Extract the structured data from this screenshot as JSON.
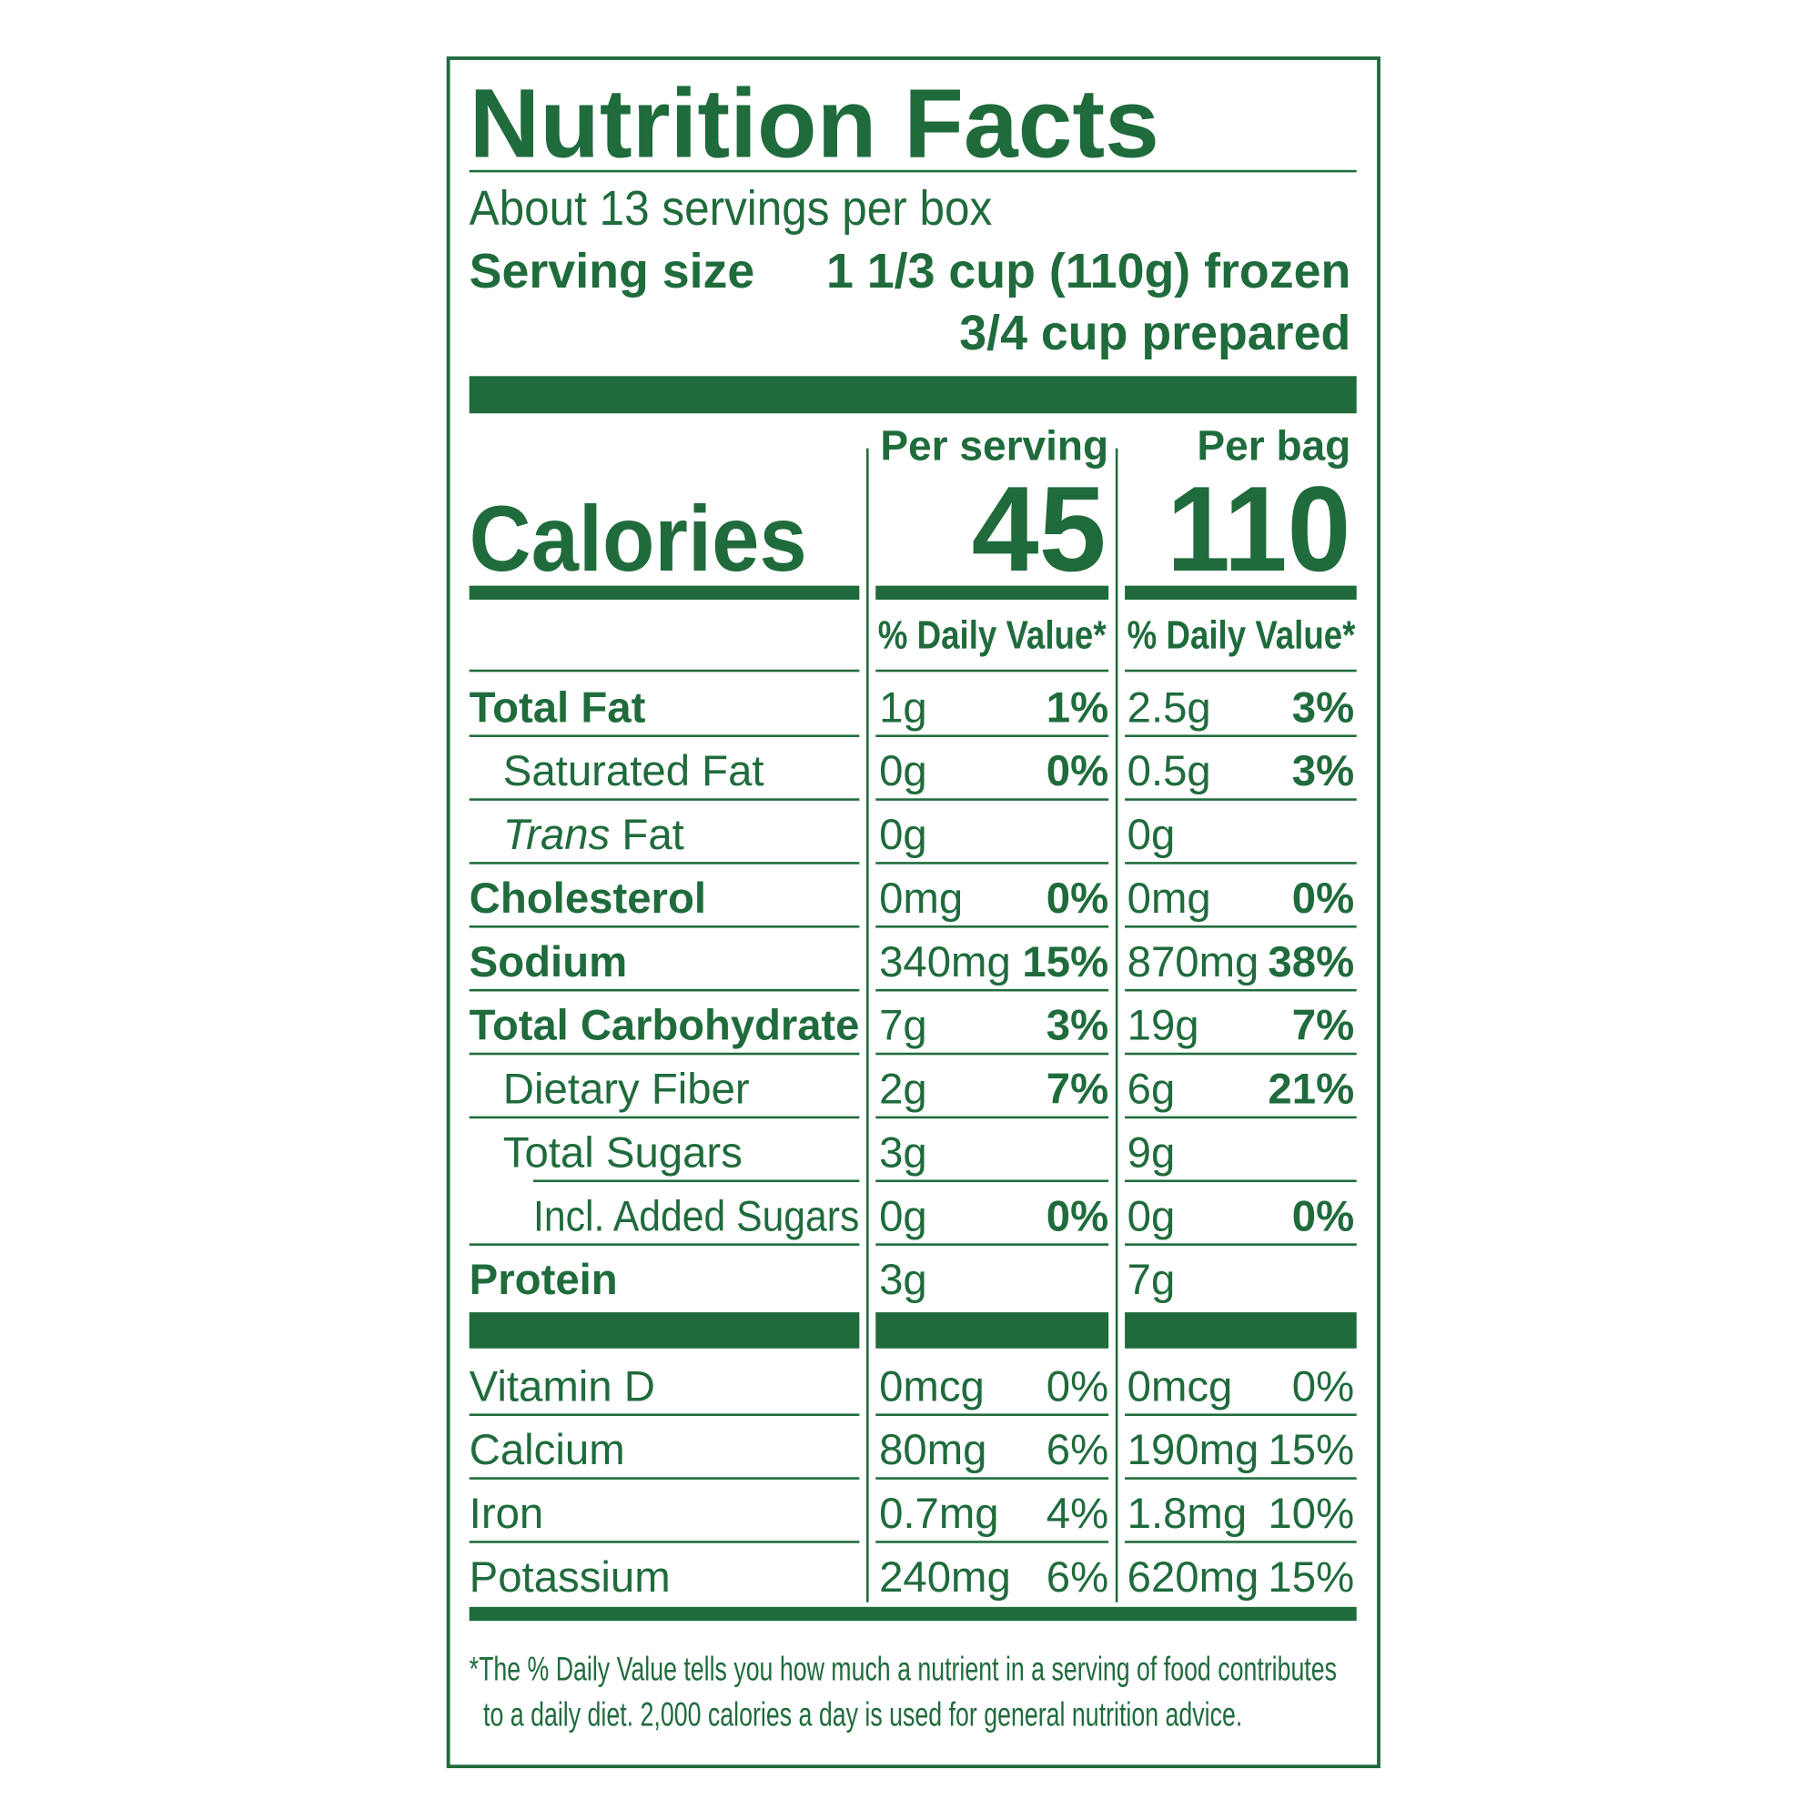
{
  "header": {
    "title": "Nutrition Facts",
    "servings": "About 13 servings per box",
    "serving_size_label": "Serving size",
    "serving_size": "1 1/3 cup (110g) frozen",
    "serving_size_prepared": "3/4 cup prepared"
  },
  "calories": {
    "label": "Calories",
    "columns": [
      {
        "heading": "Per serving",
        "value": 45
      },
      {
        "heading": "Per bag",
        "value": 110
      }
    ],
    "dv_heading": "% Daily Value*"
  },
  "nutrients": [
    {
      "label": "Total Fat",
      "amounts": [
        "1g",
        "2.5g"
      ],
      "dv": [
        "1%",
        "3%"
      ]
    },
    {
      "label": "Saturated Fat",
      "amounts": [
        "0g",
        "0.5g"
      ],
      "dv": [
        "0%",
        "3%"
      ]
    },
    {
      "label_em": "Trans",
      "label": "Fat",
      "amounts": [
        "0g",
        "0g"
      ],
      "dv": [
        null,
        null
      ]
    },
    {
      "label": "Cholesterol",
      "amounts": [
        "0mg",
        "0mg"
      ],
      "dv": [
        "0%",
        "0%"
      ]
    },
    {
      "label": "Sodium",
      "amounts": [
        "340mg",
        "870mg"
      ],
      "dv": [
        "15%",
        "38%"
      ]
    },
    {
      "label": "Total Carbohydrate",
      "amounts": [
        "7g",
        "19g"
      ],
      "dv": [
        "3%",
        "7%"
      ]
    },
    {
      "label": "Dietary Fiber",
      "amounts": [
        "2g",
        "6g"
      ],
      "dv": [
        "7%",
        "21%"
      ]
    },
    {
      "label": "Total Sugars",
      "amounts": [
        "3g",
        "9g"
      ],
      "dv": [
        null,
        null
      ]
    },
    {
      "label": "Incl. Added Sugars",
      "amounts": [
        "0g",
        "0g"
      ],
      "dv": [
        "0%",
        "0%"
      ]
    },
    {
      "label": "Protein",
      "amounts": [
        "3g",
        "7g"
      ],
      "dv": [
        null,
        null
      ]
    }
  ],
  "vitamins": [
    {
      "label": "Vitamin D",
      "amounts": [
        "0mcg",
        "0mcg"
      ],
      "dv": [
        "0%",
        "0%"
      ]
    },
    {
      "label": "Calcium",
      "amounts": [
        "80mg",
        "190mg"
      ],
      "dv": [
        "6%",
        "15%"
      ]
    },
    {
      "label": "Iron",
      "amounts": [
        "0.7mg",
        "1.8mg"
      ],
      "dv": [
        "4%",
        "10%"
      ]
    },
    {
      "label": "Potassium",
      "amounts": [
        "240mg",
        "620mg"
      ],
      "dv": [
        "6%",
        "15%"
      ]
    }
  ],
  "footnote": [
    "*The % Daily Value tells you how much a nutrient in a serving of food contributes",
    "to a daily diet. 2,000 calories a day is used for general nutrition advice."
  ]
}
